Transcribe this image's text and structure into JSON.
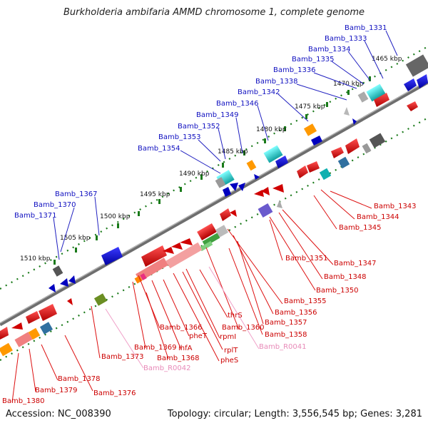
{
  "title": "Burkholderia ambifaria AMMD chromosome 1, complete genome",
  "footer": {
    "accession": "Accession: NC_008390",
    "summary": "Topology: circular; Length: 3,556,545 bp; Genes: 3,281"
  },
  "colors": {
    "backbone": "#8a8a8a",
    "upper_label": "#1010c0",
    "lower_label": "#cc0000",
    "rna_label": "#e88ab8",
    "ruler_dots": "#1a7a1a"
  },
  "kbp_marks": [
    "1465 kbp",
    "1470 kbp",
    "1475 kbp",
    "1480 kbp",
    "1485 kbp",
    "1490 kbp",
    "1495 kbp",
    "1500 kbp",
    "1505 kbp",
    "1510 kbp"
  ],
  "upper_labels": [
    "Bamb_1331",
    "Bamb_1333",
    "Bamb_1334",
    "Bamb_1335",
    "Bamb_1336",
    "Bamb_1338",
    "Bamb_1342",
    "Bamb_1346",
    "Bamb_1349",
    "Bamb_1352",
    "Bamb_1353",
    "Bamb_1354",
    "Bamb_1367",
    "Bamb_1370",
    "Bamb_1371"
  ],
  "lower_labels": [
    "Bamb_1343",
    "Bamb_1344",
    "Bamb_1345",
    "Bamb_1347",
    "Bamb_1348",
    "Bamb_1350",
    "Bamb_1351",
    "Bamb_1355",
    "Bamb_1356",
    "Bamb_1357",
    "Bamb_1358",
    "Bamb_1360",
    "thrS",
    "rpmI",
    "rplT",
    "pheS",
    "pheT",
    "ihfA",
    "Bamb_1366",
    "Bamb_1368",
    "Bamb_1369",
    "Bamb_1373",
    "Bamb_1376",
    "Bamb_1378",
    "Bamb_1379",
    "Bamb_1380"
  ],
  "rna_labels": [
    "Bamb_R0041",
    "Bamb_R0042"
  ]
}
